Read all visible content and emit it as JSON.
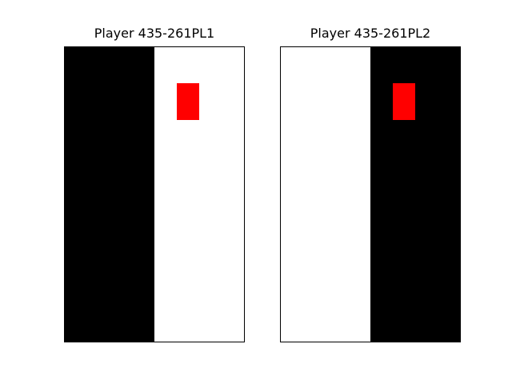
{
  "players": [
    {
      "title": "Player 435-261PL1",
      "left_column_color": "#000000",
      "right_column_color": "#ffffff",
      "marker_color": "#ff0000"
    },
    {
      "title": "Player 435-261PL2",
      "left_column_color": "#ffffff",
      "right_column_color": "#000000",
      "marker_color": "#ff0000"
    }
  ]
}
